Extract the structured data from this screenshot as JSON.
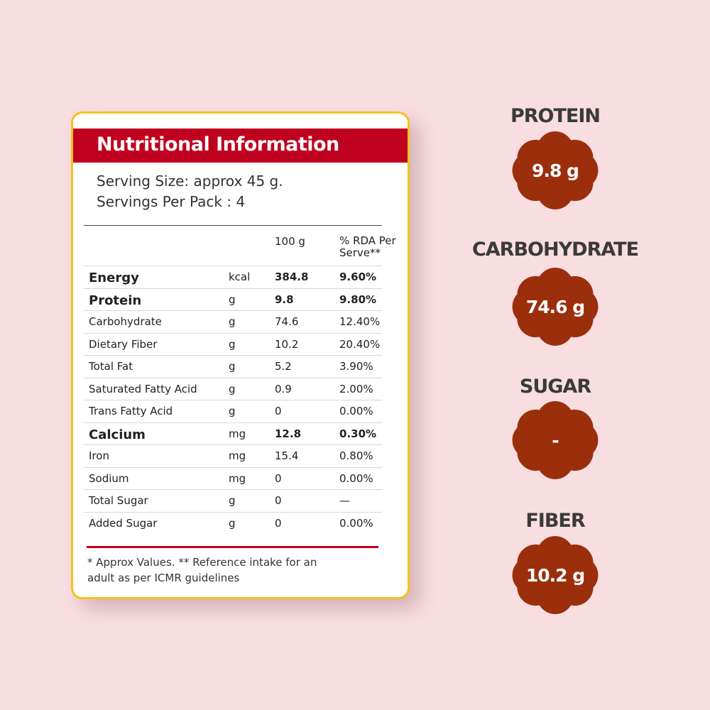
{
  "card": {
    "title": "Nutritional Information",
    "serving_size": "Serving Size: approx 45 g.",
    "servings": "Servings Per Pack : 4",
    "table": {
      "header": [
        "100 g",
        "% RDA Per Serve**"
      ],
      "rows": [
        {
          "cells": [
            "Energy",
            "kcal",
            "384.8",
            "9.60%"
          ],
          "bold": true
        },
        {
          "cells": [
            "Protein",
            "g",
            "9.8",
            "9.80%"
          ],
          "bold": true
        },
        {
          "cells": [
            "Carbohydrate",
            "g",
            "74.6",
            "12.40%"
          ]
        },
        {
          "cells": [
            "Dietary Fiber",
            "g",
            "10.2",
            "20.40%"
          ]
        },
        {
          "cells": [
            "Total Fat",
            "g",
            "5.2",
            "3.90%"
          ]
        },
        {
          "cells": [
            "Saturated Fatty Acid",
            "g",
            "0.9",
            "2.00%"
          ]
        },
        {
          "cells": [
            "Trans Fatty Acid",
            "g",
            "0",
            "0.00%"
          ]
        },
        {
          "cells": [
            "Calcium",
            "mg",
            "12.8",
            "0.30%"
          ],
          "bold": true
        },
        {
          "cells": [
            "Iron",
            "mg",
            "15.4",
            "0.80%"
          ]
        },
        {
          "cells": [
            "Sodium",
            "mg",
            "0",
            "0.00%"
          ]
        },
        {
          "cells": [
            "Total Sugar",
            "g",
            "0",
            "—"
          ]
        },
        {
          "cells": [
            "Added Sugar",
            "g",
            "0",
            "0.00%"
          ]
        }
      ]
    },
    "footnote": "* Approx Values. ** Reference intake for an adult as per ICMR guidelines"
  },
  "badges": [
    {
      "label": "PROTEIN",
      "value": "9.8 g"
    },
    {
      "label": "CARBOHYDRATE",
      "value": "74.6 g"
    },
    {
      "label": "SUGAR",
      "value": "-"
    },
    {
      "label": "FIBER",
      "value": "10.2 g"
    }
  ]
}
